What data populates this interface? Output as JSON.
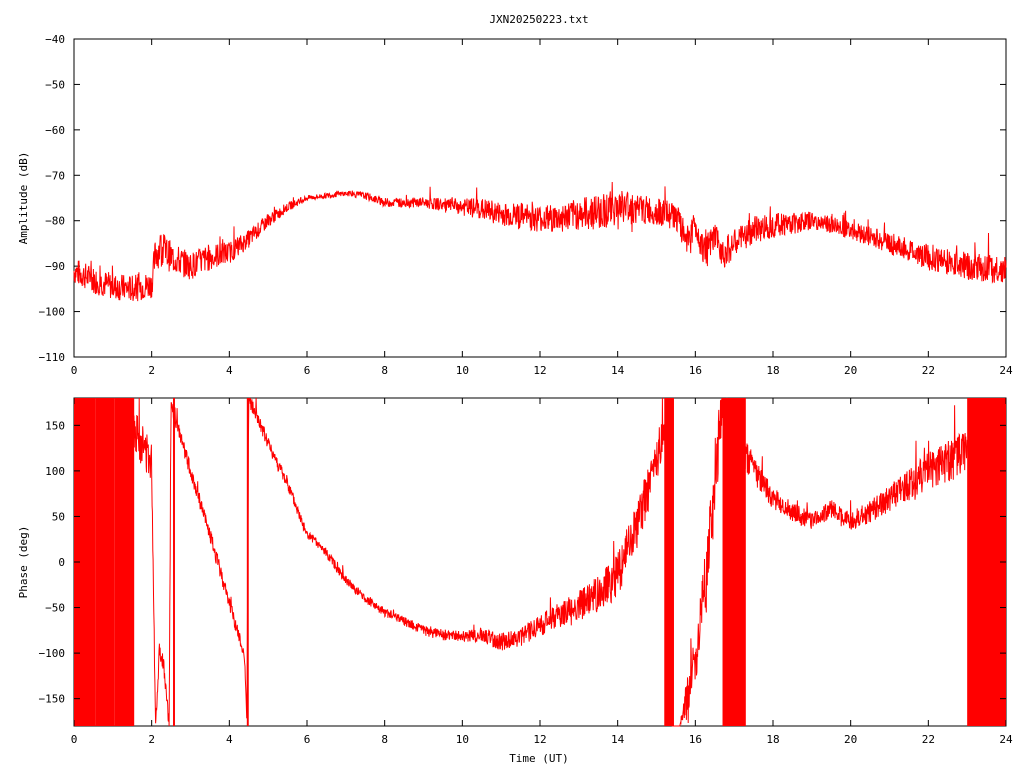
{
  "title": "JXN20250223.txt",
  "colors": {
    "trace": "#ff0000",
    "axes": "#000000",
    "background": "#ffffff"
  },
  "chart_data": [
    {
      "type": "line",
      "ylabel": "Amplitude (dB)",
      "xlabel": "",
      "xlim": [
        0,
        24
      ],
      "ylim": [
        -110,
        -40
      ],
      "x_ticks": [
        0,
        2,
        4,
        6,
        8,
        10,
        12,
        14,
        16,
        18,
        20,
        22,
        24
      ],
      "y_ticks": [
        -40,
        -50,
        -60,
        -70,
        -80,
        -90,
        -100,
        -110
      ],
      "grid": false,
      "series": [
        {
          "x": [
            0,
            0.5,
            1.0,
            1.5,
            2.0,
            2.1,
            2.25,
            2.5,
            3.0,
            3.5,
            4.0,
            4.5,
            5.0,
            5.5,
            6.0,
            6.5,
            7.0,
            7.5,
            8.0,
            8.5,
            9.0,
            9.5,
            10.0,
            10.5,
            11.0,
            11.5,
            12.0,
            12.5,
            13.0,
            13.5,
            14.0,
            14.25,
            14.5,
            15.0,
            15.5,
            15.75,
            16.0,
            16.25,
            16.5,
            16.75,
            17.0,
            17.5,
            18.0,
            18.5,
            19.0,
            19.5,
            20.0,
            20.5,
            21.0,
            21.5,
            22.0,
            22.5,
            23.0,
            23.5,
            24.0
          ],
          "y": [
            -91,
            -93,
            -94.5,
            -95,
            -94,
            -87,
            -86,
            -88,
            -90,
            -88,
            -87,
            -84,
            -80,
            -77,
            -75,
            -74.5,
            -74,
            -74.5,
            -76,
            -76,
            -76,
            -76.5,
            -77,
            -77.5,
            -78.5,
            -79,
            -79.5,
            -79.5,
            -78.5,
            -78,
            -77,
            -77,
            -77.5,
            -78,
            -79,
            -84,
            -81,
            -87,
            -84,
            -87,
            -85,
            -82,
            -81,
            -80.5,
            -80,
            -81,
            -82,
            -83.5,
            -85,
            -86.5,
            -88,
            -89,
            -90,
            -90.5,
            -91
          ],
          "noise": [
            3,
            3,
            3,
            3,
            3,
            4,
            4,
            3.5,
            3,
            3,
            2.5,
            2,
            1.5,
            1,
            0.6,
            0.6,
            0.6,
            0.8,
            1,
            1,
            1.2,
            1.4,
            2,
            2.5,
            2.6,
            3,
            3,
            3.2,
            3.5,
            4,
            4,
            4,
            3.5,
            3,
            3,
            3.5,
            3.5,
            3.5,
            3.5,
            3.5,
            3,
            3,
            2.8,
            2.5,
            2,
            2,
            2,
            2.2,
            2.5,
            2.5,
            3,
            3,
            3,
            3,
            3
          ]
        }
      ]
    },
    {
      "type": "line",
      "ylabel": "Phase (deg)",
      "xlabel": "Time (UT)",
      "xlim": [
        0,
        24
      ],
      "ylim": [
        -180,
        180
      ],
      "x_ticks": [
        0,
        2,
        4,
        6,
        8,
        10,
        12,
        14,
        16,
        18,
        20,
        22,
        24
      ],
      "y_ticks": [
        150,
        100,
        50,
        0,
        -50,
        -100,
        -150
      ],
      "grid": false,
      "series": [
        {
          "x": [
            1.5,
            1.75,
            2.0,
            2.1,
            2.2,
            2.3,
            2.45,
            2.5,
            2.55,
            3.0,
            3.5,
            4.0,
            4.4,
            4.45,
            4.5,
            5.0,
            5.5,
            6.0,
            6.5,
            7.0,
            7.5,
            8.0,
            8.5,
            9.0,
            9.5,
            10.0,
            10.5,
            11.0,
            11.5,
            12.0,
            12.5,
            13.0,
            13.5,
            14.0,
            14.5,
            15.0,
            15.2,
            15.4,
            15.6,
            15.8,
            16.0,
            16.1,
            16.3,
            16.5,
            16.7,
            16.8,
            17.0,
            17.2,
            17.5,
            18.0,
            18.5,
            19.0,
            19.25,
            19.5,
            19.75,
            20.0,
            20.5,
            21.0,
            21.5,
            22.0,
            22.5,
            23.0
          ],
          "y": [
            150,
            130,
            110,
            -180,
            -95,
            -110,
            -180,
            180,
            165,
            100,
            30,
            -45,
            -105,
            -180,
            180,
            130,
            85,
            30,
            10,
            -20,
            -40,
            -55,
            -65,
            -75,
            -80,
            -82,
            -80,
            -88,
            -82,
            -70,
            -58,
            -50,
            -35,
            -15,
            40,
            110,
            150,
            -180,
            -180,
            -150,
            -110,
            -80,
            -10,
            80,
            180,
            160,
            140,
            125,
            100,
            70,
            55,
            45,
            50,
            58,
            52,
            45,
            55,
            70,
            85,
            100,
            110,
            120
          ],
          "noise": [
            25,
            25,
            20,
            10,
            10,
            10,
            8,
            8,
            8,
            8,
            8,
            8,
            8,
            8,
            8,
            8,
            7,
            6,
            5,
            5,
            5,
            5,
            5,
            6,
            6,
            6,
            8,
            10,
            10,
            12,
            14,
            18,
            20,
            25,
            25,
            25,
            25,
            0,
            0,
            30,
            30,
            30,
            40,
            40,
            30,
            25,
            20,
            18,
            15,
            12,
            10,
            10,
            10,
            10,
            10,
            10,
            12,
            15,
            18,
            20,
            22,
            25
          ]
        }
      ],
      "wrap_bands": [
        [
          0.0,
          0.55
        ],
        [
          0.55,
          1.05
        ],
        [
          1.05,
          1.55
        ],
        [
          2.55,
          2.6
        ],
        [
          4.45,
          4.5
        ],
        [
          15.2,
          15.45
        ],
        [
          16.7,
          17.3
        ],
        [
          23.0,
          24.0
        ]
      ]
    }
  ]
}
